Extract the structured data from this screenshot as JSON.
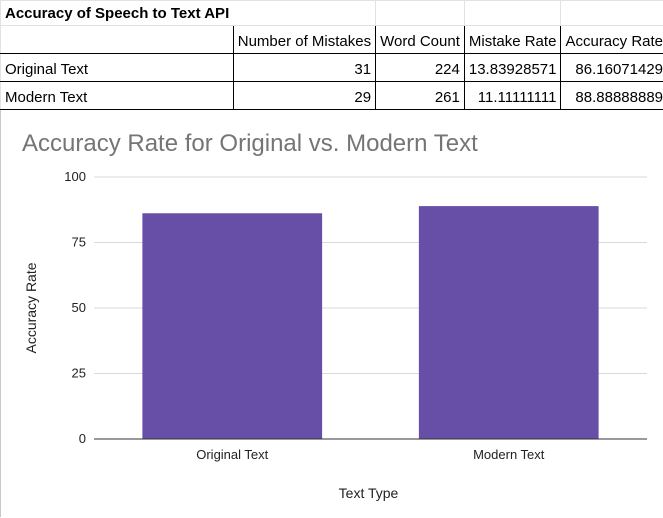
{
  "sheet": {
    "title": "Accuracy of Speech to Text API",
    "headers": [
      "",
      "Number of Mistakes",
      "Word Count",
      "Mistake Rate",
      "Accuracy Rate"
    ],
    "rows": [
      [
        "Original Text",
        "31",
        "224",
        "13.83928571",
        "86.16071429"
      ],
      [
        "Modern Text",
        "29",
        "261",
        "11.11111111",
        "88.88888889"
      ]
    ]
  },
  "chart_data": {
    "type": "bar",
    "title": "Accuracy Rate for Original vs. Modern Text",
    "xlabel": "Text Type",
    "ylabel": "Accuracy Rate",
    "categories": [
      "Original Text",
      "Modern Text"
    ],
    "values": [
      86.16071429,
      88.88888889
    ],
    "ylim": [
      0,
      100
    ],
    "yticks": [
      "0",
      "25",
      "50",
      "75",
      "100"
    ],
    "grid": true,
    "legend": "none",
    "bar_color": "#674ea7"
  }
}
